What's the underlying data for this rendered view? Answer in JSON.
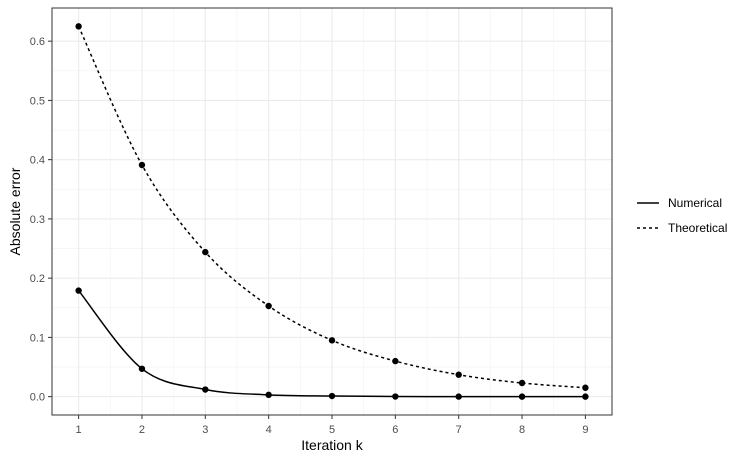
{
  "chart_data": {
    "type": "line",
    "title": "",
    "xlabel": "Iteration k",
    "ylabel": "Absolute error",
    "x": [
      1,
      2,
      3,
      4,
      5,
      6,
      7,
      8,
      9
    ],
    "xlim": [
      0.58,
      9.42
    ],
    "ylim": [
      -0.031,
      0.656
    ],
    "xticks": [
      "1",
      "2",
      "3",
      "4",
      "5",
      "6",
      "7",
      "8",
      "9"
    ],
    "yticks": [
      "0.0",
      "0.1",
      "0.2",
      "0.3",
      "0.4",
      "0.5",
      "0.6"
    ],
    "grid": true,
    "legend_position": "right",
    "series": [
      {
        "name": "Numerical",
        "linetype": "solid",
        "color": "#000000",
        "values": [
          0.179,
          0.047,
          0.012,
          0.003,
          0.001,
          0.0002,
          0.0001,
          0.0,
          0.0
        ]
      },
      {
        "name": "Theoretical",
        "linetype": "dashed",
        "color": "#000000",
        "values": [
          0.625,
          0.391,
          0.244,
          0.153,
          0.095,
          0.06,
          0.037,
          0.023,
          0.015
        ]
      }
    ]
  }
}
